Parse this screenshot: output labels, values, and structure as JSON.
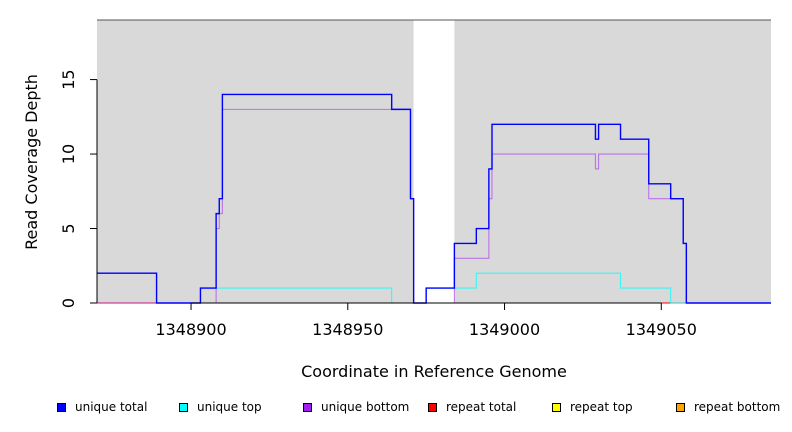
{
  "chart_data": {
    "type": "line",
    "title": "",
    "xlabel": "Coordinate in Reference Genome",
    "ylabel": "Read Coverage Depth",
    "xlim": [
      1348870,
      1349085
    ],
    "ylim": [
      0,
      19
    ],
    "x_ticks": [
      1348900,
      1348950,
      1349000,
      1349050
    ],
    "x_tick_labels": [
      "1348900",
      "1348950",
      "1349000",
      "1349050"
    ],
    "y_ticks": [
      0,
      5,
      10,
      15
    ],
    "y_tick_labels": [
      "0",
      "5",
      "10",
      "15"
    ],
    "shaded_regions": [
      [
        1348870,
        1348971
      ],
      [
        1348984,
        1349085
      ]
    ],
    "step_style": "post",
    "series": [
      {
        "name": "unique total",
        "color": "#0000ff",
        "x": [
          1348870,
          1348889,
          1348903,
          1348908,
          1348909,
          1348910,
          1348964,
          1348970,
          1348971,
          1348975,
          1348984,
          1348991,
          1348995,
          1348996,
          1349029,
          1349030,
          1349037,
          1349046,
          1349053,
          1349057,
          1349058,
          1349085
        ],
        "y": [
          2,
          0,
          1,
          6,
          7,
          14,
          13,
          7,
          0,
          1,
          4,
          5,
          9,
          12,
          11,
          12,
          11,
          8,
          7,
          4,
          0,
          0
        ]
      },
      {
        "name": "unique top",
        "color": "#00ffff",
        "x": [
          1348870,
          1348889,
          1348903,
          1348908,
          1348964,
          1348975,
          1348991,
          1349037,
          1349053,
          1349085
        ],
        "y": [
          2,
          0,
          1,
          1,
          0,
          1,
          2,
          1,
          0,
          0
        ]
      },
      {
        "name": "unique bottom",
        "color": "#a020f0",
        "x": [
          1348870,
          1348908,
          1348909,
          1348910,
          1348964,
          1348970,
          1348971,
          1348984,
          1348995,
          1348996,
          1349029,
          1349030,
          1349046,
          1349053,
          1349057,
          1349058,
          1349085
        ],
        "y": [
          0,
          5,
          6,
          13,
          13,
          7,
          0,
          3,
          7,
          10,
          9,
          10,
          7,
          7,
          4,
          0,
          0
        ]
      },
      {
        "name": "repeat total",
        "color": "#ff0000",
        "x": [
          1348870,
          1349085
        ],
        "y": [
          0,
          0
        ]
      },
      {
        "name": "repeat top",
        "color": "#ffff00",
        "x": [
          1348870,
          1349085
        ],
        "y": [
          0,
          0
        ]
      },
      {
        "name": "repeat bottom",
        "color": "#ffa500",
        "x": [
          1348870,
          1349085
        ],
        "y": [
          0,
          0
        ]
      }
    ],
    "legend": {
      "placement": "bottom",
      "entries": [
        "unique total",
        "unique top",
        "unique bottom",
        "repeat total",
        "repeat top",
        "repeat bottom"
      ]
    },
    "background_color": "#d9d9d9"
  }
}
